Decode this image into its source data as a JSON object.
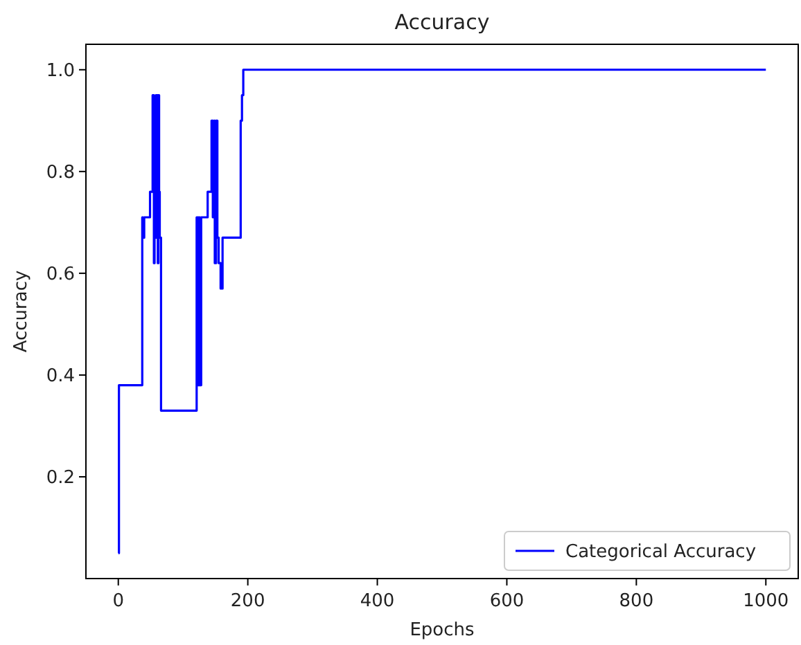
{
  "chart_data": {
    "type": "step",
    "title": "Accuracy",
    "xlabel": "Epochs",
    "ylabel": "Accuracy",
    "series": [
      {
        "name": "Categorical Accuracy",
        "color": "#0000ff",
        "x": [
          0,
          1,
          37,
          38,
          40,
          49,
          53,
          55,
          56,
          57,
          58,
          59,
          60,
          61,
          62,
          63,
          64,
          66,
          121,
          122,
          123,
          124,
          125,
          126,
          128,
          138,
          144,
          146,
          148,
          149,
          151,
          153,
          155,
          158,
          161,
          189,
          191,
          193,
          1000
        ],
        "values": [
          0.05,
          0.38,
          0.71,
          0.67,
          0.71,
          0.76,
          0.95,
          0.62,
          0.9,
          0.76,
          0.95,
          0.67,
          0.95,
          0.62,
          0.95,
          0.76,
          0.67,
          0.33,
          0.71,
          0.38,
          0.71,
          0.38,
          0.71,
          0.38,
          0.71,
          0.76,
          0.9,
          0.71,
          0.9,
          0.62,
          0.9,
          0.67,
          0.62,
          0.57,
          0.67,
          0.9,
          0.95,
          1.0,
          1.0
        ]
      }
    ],
    "xlim": [
      -50,
      1050
    ],
    "ylim": [
      0,
      1.05
    ],
    "xticks": [
      0,
      200,
      400,
      600,
      800,
      1000
    ],
    "yticks": [
      {
        "value": 0.2,
        "label": "0.2"
      },
      {
        "value": 0.4,
        "label": "0.4"
      },
      {
        "value": 0.6,
        "label": "0.6"
      },
      {
        "value": 0.8,
        "label": "0.8"
      },
      {
        "value": 1.0,
        "label": "1.0"
      }
    ],
    "legend": "bottom right",
    "grid": false
  }
}
